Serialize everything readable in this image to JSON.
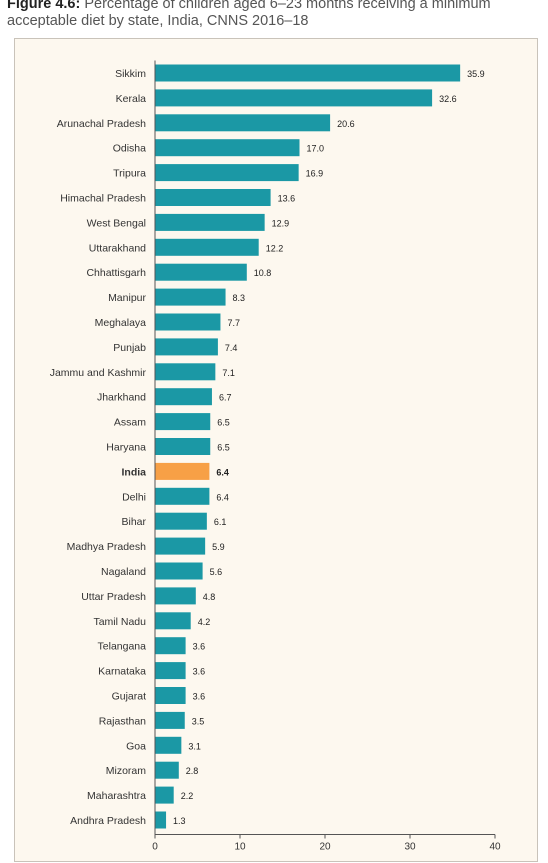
{
  "caption": {
    "label": "Figure 4.6:",
    "text": " Percentage of children aged 6–23 months receiving a minimum acceptable diet by state, India, CNNS 2016–18"
  },
  "colors": {
    "bar": "#1b98a5",
    "highlight": "#f7a046",
    "background": "#fdf8ef",
    "axis": "#555555"
  },
  "chart_data": {
    "type": "bar",
    "orientation": "horizontal",
    "title": "Percentage of children aged 6–23 months receiving a minimum acceptable diet by state, India, CNNS 2016–18",
    "categories": [
      "Sikkim",
      "Kerala",
      "Arunachal Pradesh",
      "Odisha",
      "Tripura",
      "Himachal Pradesh",
      "West Bengal",
      "Uttarakhand",
      "Chhattisgarh",
      "Manipur",
      "Meghalaya",
      "Punjab",
      "Jammu and Kashmir",
      "Jharkhand",
      "Assam",
      "Haryana",
      "India",
      "Delhi",
      "Bihar",
      "Madhya Pradesh",
      "Nagaland",
      "Uttar Pradesh",
      "Tamil Nadu",
      "Telangana",
      "Karnataka",
      "Gujarat",
      "Rajasthan",
      "Goa",
      "Mizoram",
      "Maharashtra",
      "Andhra Pradesh"
    ],
    "values": [
      35.9,
      32.6,
      20.6,
      17.0,
      16.9,
      13.6,
      12.9,
      12.2,
      10.8,
      8.3,
      7.7,
      7.4,
      7.1,
      6.7,
      6.5,
      6.5,
      6.4,
      6.4,
      6.1,
      5.9,
      5.6,
      4.8,
      4.2,
      3.6,
      3.6,
      3.6,
      3.5,
      3.1,
      2.8,
      2.2,
      1.3
    ],
    "value_labels": [
      "35.9",
      "32.6",
      "20.6",
      "17.0",
      "16.9",
      "13.6",
      "12.9",
      "12.2",
      "10.8",
      "8.3",
      "7.7",
      "7.4",
      "7.1",
      "6.7",
      "6.5",
      "6.5",
      "6.4",
      "6.4",
      "6.1",
      "5.9",
      "5.6",
      "4.8",
      "4.2",
      "3.6",
      "3.6",
      "3.6",
      "3.5",
      "3.1",
      "2.8",
      "2.2",
      "1.3"
    ],
    "highlight": "India",
    "xlim": [
      0,
      40
    ],
    "xticks": [
      "0",
      "10",
      "20",
      "30",
      "40"
    ],
    "grid": false
  }
}
